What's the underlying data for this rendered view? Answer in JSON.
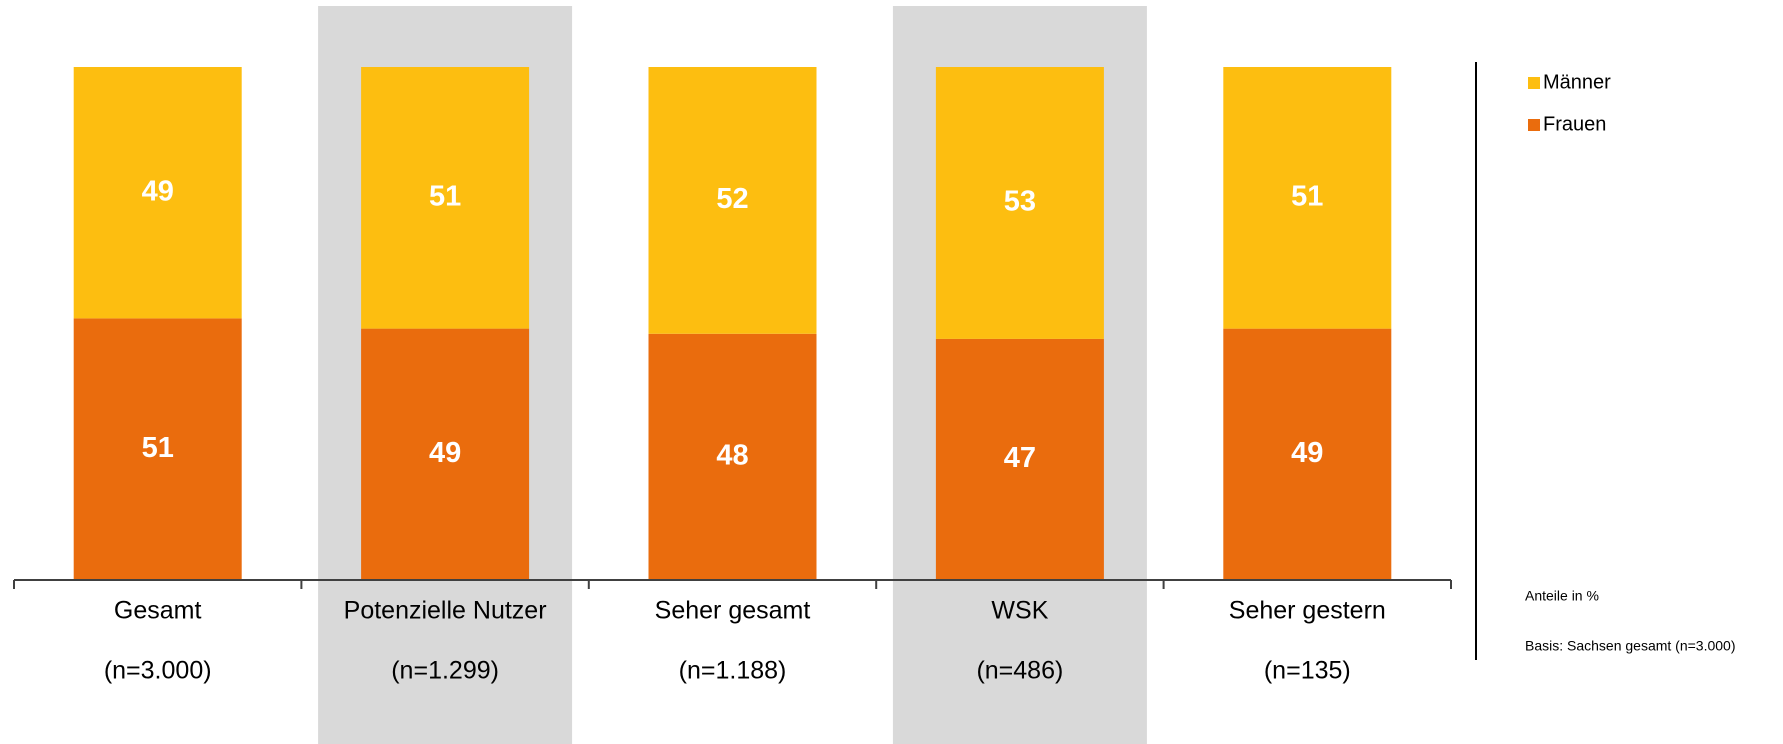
{
  "chart_data": {
    "type": "stacked_bar",
    "categories": [
      "Gesamt",
      "Potenzielle Nutzer",
      "Seher gesamt",
      "WSK",
      "Seher gestern"
    ],
    "sample_sizes": [
      "(n=3.000)",
      "(n=1.299)",
      "(n=1.188)",
      "(n=486)",
      "(n=135)"
    ],
    "highlighted": [
      1,
      3
    ],
    "series": [
      {
        "name": "Frauen",
        "color": "#ea6c0d",
        "values": [
          51,
          49,
          48,
          47,
          49
        ]
      },
      {
        "name": "Männer",
        "color": "#fdbe10",
        "values": [
          49,
          51,
          52,
          53,
          51
        ]
      }
    ],
    "ylim": [
      0,
      100
    ],
    "notes": [
      "Anteile in %",
      "Basis: Sachsen gesamt (n=3.000)"
    ]
  }
}
